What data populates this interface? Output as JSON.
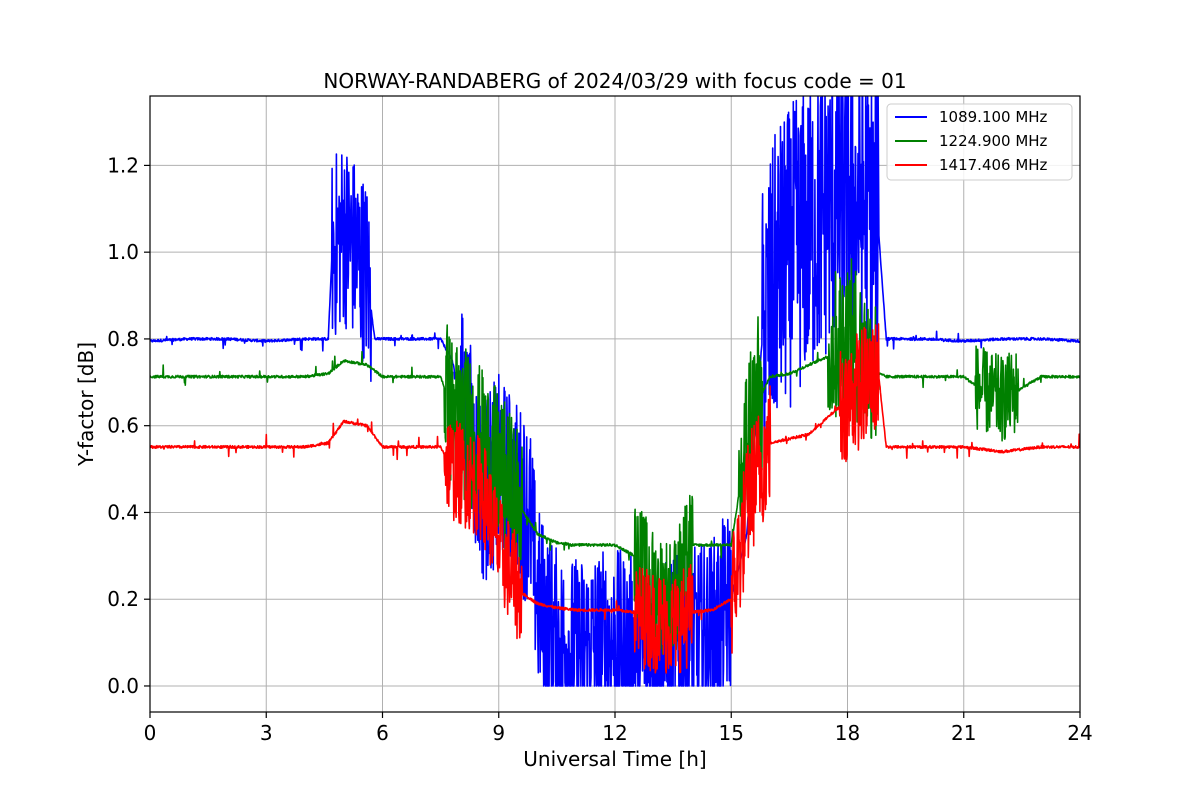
{
  "chart_data": {
    "type": "line",
    "title": "NORWAY-RANDABERG of 2024/03/29 with focus code = 01",
    "xlabel": "Universal Time [h]",
    "ylabel": "Y-factor [dB]",
    "xlim": [
      0,
      24
    ],
    "ylim": [
      -0.06,
      1.36
    ],
    "xticks": [
      0,
      3,
      6,
      9,
      12,
      15,
      18,
      21,
      24
    ],
    "yticks": [
      0.0,
      0.2,
      0.4,
      0.6,
      0.8,
      1.0,
      1.2
    ],
    "ytick_labels": [
      "0.0",
      "0.2",
      "0.4",
      "0.6",
      "0.8",
      "1.0",
      "1.2"
    ],
    "grid": true,
    "legend_position": "top-right",
    "series": [
      {
        "name": "1089.100 MHz",
        "color": "#0000ff",
        "x": [
          0,
          1,
          2,
          3,
          4,
          4.6,
          4.7,
          5.0,
          5.3,
          5.6,
          5.8,
          6.5,
          7.0,
          7.5,
          7.8,
          8.2,
          8.6,
          9.0,
          9.4,
          9.8,
          10.0,
          10.5,
          11.0,
          11.5,
          12.0,
          12.5,
          13.0,
          13.5,
          14.0,
          14.5,
          15.0,
          15.4,
          15.8,
          16.2,
          16.6,
          17.0,
          17.5,
          18.0,
          18.5,
          18.8,
          19.0,
          20.0,
          21.0,
          22.0,
          23.0,
          24.0
        ],
        "y": [
          0.795,
          0.8,
          0.8,
          0.795,
          0.8,
          0.8,
          1.0,
          1.05,
          1.0,
          0.95,
          0.8,
          0.8,
          0.8,
          0.8,
          0.75,
          0.6,
          0.45,
          0.5,
          0.45,
          0.4,
          0.2,
          0.1,
          0.08,
          0.1,
          0.1,
          0.08,
          0.06,
          0.08,
          0.1,
          0.12,
          0.2,
          0.35,
          0.8,
          0.95,
          1.0,
          1.05,
          1.1,
          1.12,
          1.1,
          1.05,
          0.8,
          0.8,
          0.795,
          0.8,
          0.8,
          0.795
        ],
        "noisy_segments": [
          [
            4.7,
            5.7,
            0.22
          ],
          [
            15.8,
            18.8,
            0.35
          ],
          [
            8.0,
            15.0,
            0.22
          ]
        ]
      },
      {
        "name": "1224.900 MHz",
        "color": "#008000",
        "x": [
          0,
          1,
          2,
          3,
          4,
          4.6,
          5.0,
          5.6,
          6.0,
          7.0,
          7.5,
          7.8,
          8.2,
          8.6,
          9.0,
          9.5,
          10.0,
          10.5,
          11.0,
          12.0,
          12.5,
          13.0,
          13.5,
          14.0,
          14.5,
          15.0,
          15.5,
          16.0,
          16.5,
          17.0,
          17.5,
          18.0,
          18.5,
          18.8,
          19.0,
          20.0,
          21.0,
          21.5,
          22.0,
          23.0,
          24.0
        ],
        "y": [
          0.713,
          0.713,
          0.713,
          0.713,
          0.713,
          0.72,
          0.75,
          0.74,
          0.713,
          0.713,
          0.713,
          0.63,
          0.6,
          0.55,
          0.5,
          0.42,
          0.35,
          0.33,
          0.325,
          0.325,
          0.3,
          0.22,
          0.2,
          0.325,
          0.325,
          0.325,
          0.62,
          0.713,
          0.72,
          0.74,
          0.76,
          0.82,
          0.75,
          0.72,
          0.713,
          0.713,
          0.713,
          0.68,
          0.66,
          0.713,
          0.713
        ],
        "noisy_segments": [
          [
            7.6,
            9.6,
            0.18
          ],
          [
            12.5,
            14.0,
            0.14
          ],
          [
            15.2,
            15.8,
            0.2
          ],
          [
            17.5,
            18.8,
            0.18
          ],
          [
            21.3,
            22.4,
            0.1
          ]
        ]
      },
      {
        "name": "1417.406 MHz",
        "color": "#ff0000",
        "x": [
          0,
          1,
          2,
          3,
          4,
          4.6,
          5.0,
          5.6,
          6.0,
          7.0,
          7.5,
          7.8,
          8.2,
          8.6,
          9.0,
          9.5,
          10.0,
          10.5,
          11.0,
          12.0,
          12.5,
          13.0,
          13.5,
          14.0,
          14.5,
          15.0,
          15.5,
          16.0,
          16.5,
          17.0,
          17.5,
          18.0,
          18.5,
          18.8,
          19.0,
          20.0,
          21.0,
          22.0,
          23.0,
          24.0
        ],
        "y": [
          0.551,
          0.551,
          0.551,
          0.551,
          0.551,
          0.56,
          0.61,
          0.6,
          0.551,
          0.551,
          0.551,
          0.5,
          0.48,
          0.45,
          0.32,
          0.22,
          0.19,
          0.18,
          0.175,
          0.175,
          0.17,
          0.15,
          0.14,
          0.17,
          0.175,
          0.2,
          0.45,
          0.56,
          0.57,
          0.58,
          0.62,
          0.66,
          0.7,
          0.72,
          0.551,
          0.551,
          0.551,
          0.54,
          0.551,
          0.551
        ],
        "noisy_segments": [
          [
            7.6,
            9.6,
            0.12
          ],
          [
            12.5,
            14.0,
            0.12
          ],
          [
            15.0,
            16.0,
            0.15
          ],
          [
            17.8,
            18.8,
            0.14
          ]
        ]
      }
    ]
  }
}
